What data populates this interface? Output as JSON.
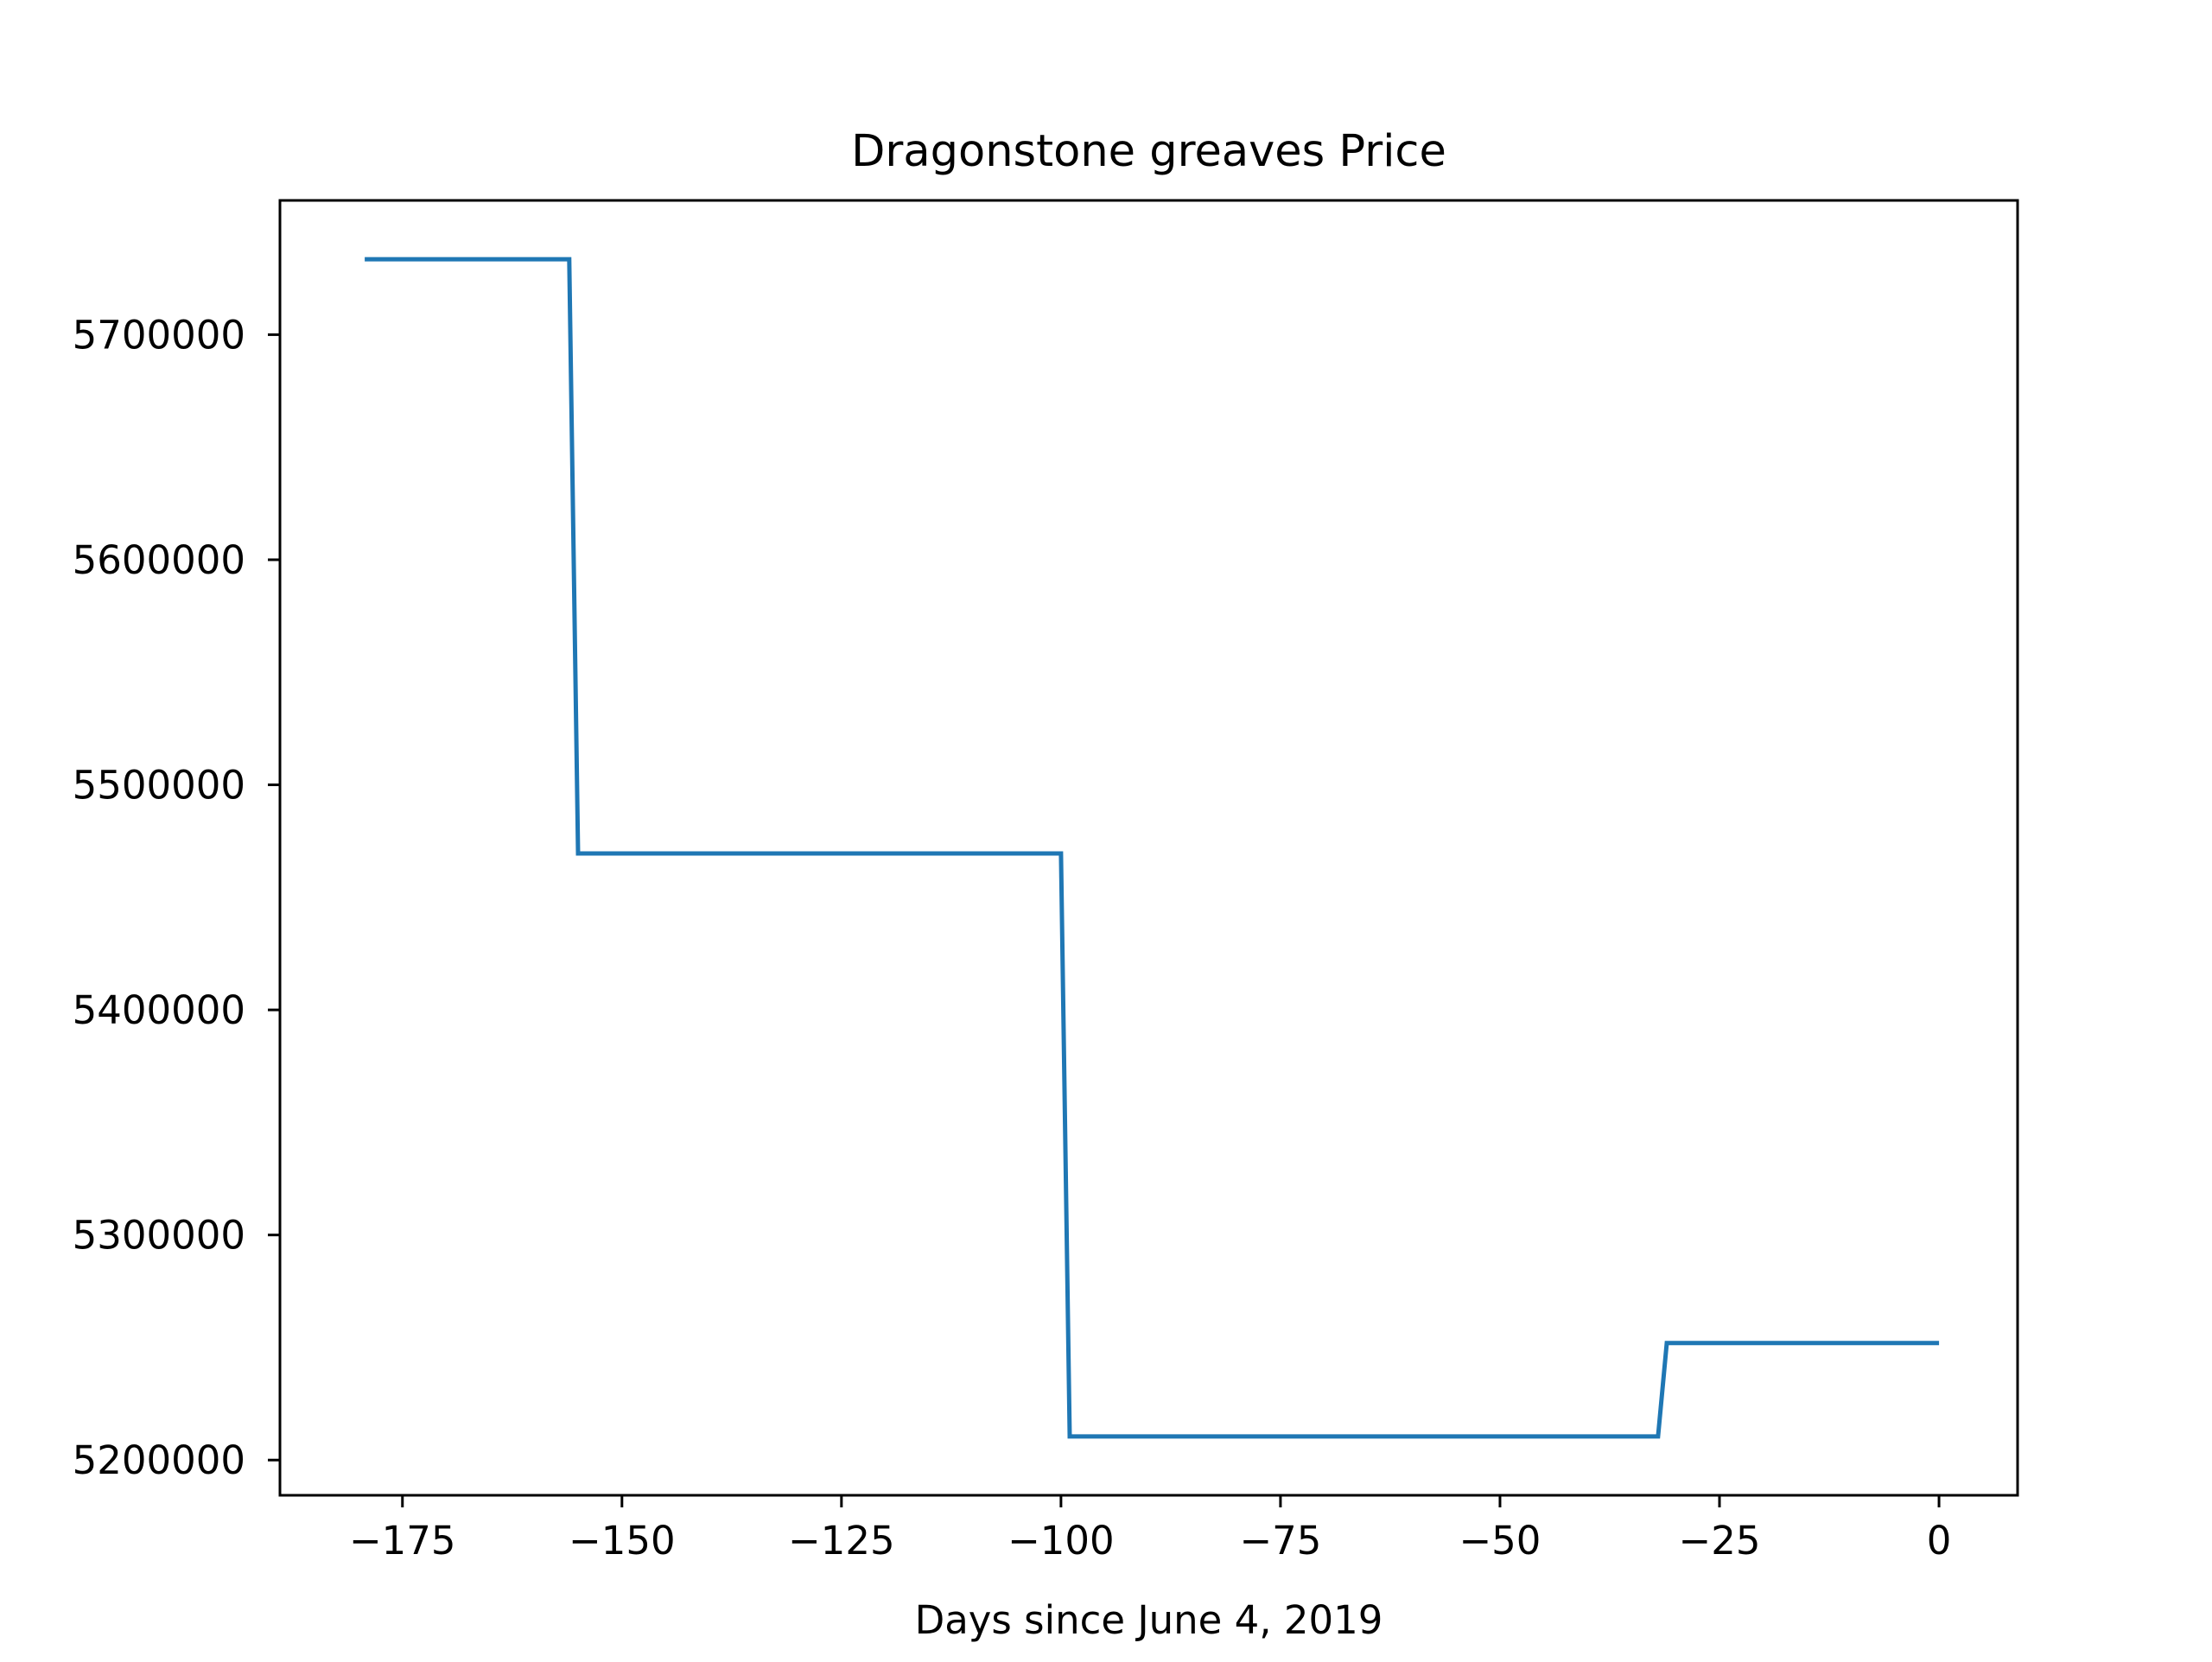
{
  "chart_data": {
    "type": "line",
    "title": "Dragonstone greaves Price",
    "xlabel": "Days since June 4, 2019",
    "ylabel": "",
    "xlim": [
      -188.95,
      8.95
    ],
    "ylim": [
      5184350,
      5759650
    ],
    "x_ticks": [
      -175,
      -150,
      -125,
      -100,
      -75,
      -50,
      -25,
      0
    ],
    "x_tick_labels": [
      "−175",
      "−150",
      "−125",
      "−100",
      "−75",
      "−50",
      "−25",
      "0"
    ],
    "y_ticks": [
      5200000,
      5300000,
      5400000,
      5500000,
      5600000,
      5700000
    ],
    "y_tick_labels": [
      "5200000",
      "5300000",
      "5400000",
      "5500000",
      "5600000",
      "5700000"
    ],
    "grid": false,
    "legend": "none",
    "series": [
      {
        "color": "#1f77b4",
        "x": [
          -179.3,
          -156,
          -155,
          -100,
          -99,
          -32,
          -31,
          0
        ],
        "y": [
          5733500,
          5733500,
          5469500,
          5469500,
          5210500,
          5210500,
          5252000,
          5252000
        ]
      }
    ]
  }
}
